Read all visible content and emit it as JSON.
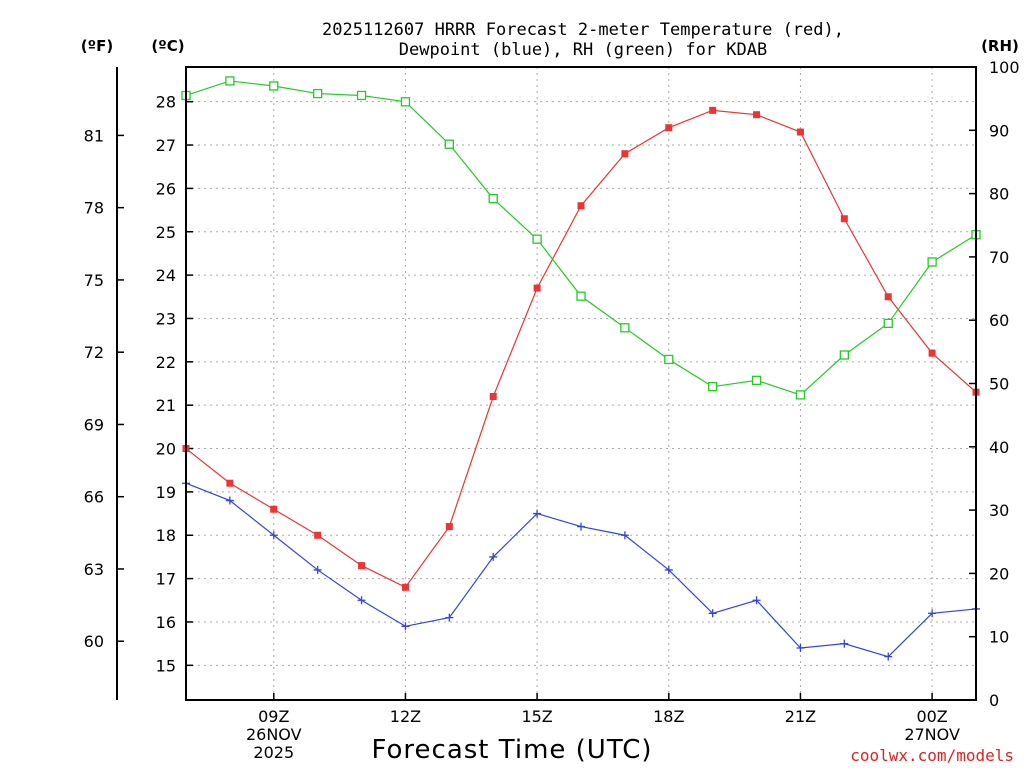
{
  "chart_data": {
    "type": "line",
    "title_line1": "2025112607 HRRR Forecast 2-meter Temperature (red),",
    "title_line2": "Dewpoint (blue), RH (green) for KDAB",
    "unit_f": "(ºF)",
    "unit_c": "(ºC)",
    "unit_rh": "(RH)",
    "xlabel": "Forecast Time (UTC)",
    "credit": "coolwx.com/models",
    "colors": {
      "temperature": "#ee3333",
      "dewpoint": "#3344dd",
      "rh": "#22cc22",
      "credit": "#dd2222"
    },
    "x": [
      7,
      8,
      9,
      10,
      11,
      12,
      13,
      14,
      15,
      16,
      17,
      18,
      19,
      20,
      21,
      22,
      23,
      24,
      25
    ],
    "xlim": [
      7,
      25
    ],
    "x_ticks": [
      {
        "x": 9,
        "lines": [
          "09Z",
          "26NOV",
          "2025"
        ]
      },
      {
        "x": 12,
        "lines": [
          "12Z"
        ]
      },
      {
        "x": 15,
        "lines": [
          "15Z"
        ]
      },
      {
        "x": 18,
        "lines": [
          "18Z"
        ]
      },
      {
        "x": 21,
        "lines": [
          "21Z"
        ]
      },
      {
        "x": 24,
        "lines": [
          "00Z",
          "27NOV"
        ]
      }
    ],
    "ylim_c": [
      14.2,
      28.8
    ],
    "yticks_c": [
      15,
      16,
      17,
      18,
      19,
      20,
      21,
      22,
      23,
      24,
      25,
      26,
      27,
      28
    ],
    "yticks_f": [
      60,
      63,
      66,
      69,
      72,
      75,
      78,
      81
    ],
    "ylim_rh": [
      0,
      100
    ],
    "yticks_rh": [
      0,
      10,
      20,
      30,
      40,
      50,
      60,
      70,
      80,
      90,
      100
    ],
    "series": [
      {
        "name": "Temperature (°C)",
        "axis": "c",
        "marker": "filled-square",
        "values": [
          20.0,
          19.2,
          18.6,
          18.0,
          17.3,
          16.8,
          18.2,
          21.2,
          23.7,
          25.6,
          26.8,
          27.4,
          27.8,
          27.7,
          27.3,
          25.3,
          23.5,
          22.2,
          21.3
        ]
      },
      {
        "name": "Dewpoint (°C)",
        "axis": "c",
        "marker": "plus",
        "values": [
          19.2,
          18.8,
          18.0,
          17.2,
          16.5,
          15.9,
          16.1,
          17.5,
          18.5,
          18.2,
          18.0,
          17.2,
          16.2,
          16.5,
          15.4,
          15.5,
          15.2,
          16.2,
          16.3
        ]
      },
      {
        "name": "RH (%)",
        "axis": "rh",
        "marker": "open-square",
        "values": [
          95.5,
          97.8,
          97.0,
          95.8,
          95.5,
          94.5,
          87.8,
          79.2,
          72.8,
          63.8,
          58.8,
          53.8,
          49.5,
          50.5,
          48.2,
          54.5,
          59.5,
          69.2,
          73.5
        ]
      }
    ]
  }
}
